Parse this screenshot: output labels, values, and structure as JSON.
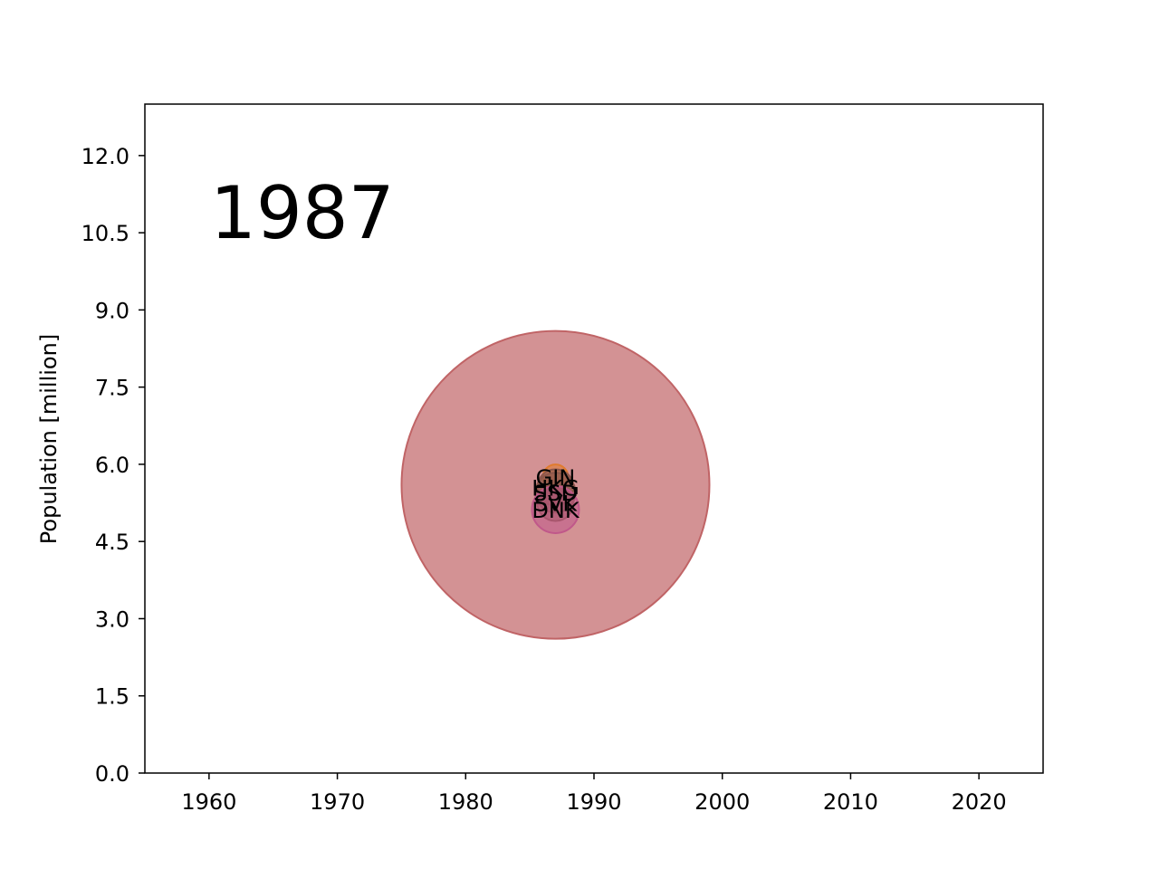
{
  "chart_data": {
    "type": "scatter",
    "title": "",
    "xlabel": "",
    "ylabel": "Population [million]",
    "xlim": [
      1955,
      2025
    ],
    "ylim": [
      0,
      13
    ],
    "xticks": [
      1960,
      1970,
      1980,
      1990,
      2000,
      2010,
      2020
    ],
    "yticks": [
      0,
      1.5,
      3,
      4.5,
      6,
      7.5,
      9,
      10.5,
      12
    ],
    "ytick_labels": [
      "0.0",
      "1.5",
      "3.0",
      "4.5",
      "6.0",
      "7.5",
      "9.0",
      "10.5",
      "12.0"
    ],
    "annotation": "1987",
    "grid": false,
    "points": [
      {
        "label": "",
        "x": 1987,
        "y": 5.6,
        "color": "#c06466"
      },
      {
        "label": "GIN",
        "x": 1987,
        "y": 5.75,
        "color": "#e07b2e"
      },
      {
        "label": "HKG",
        "x": 1987,
        "y": 5.55,
        "color": "#8c564b"
      },
      {
        "label": "SSD",
        "x": 1987,
        "y": 5.45,
        "color": "#8c564b"
      },
      {
        "label": "SVK",
        "x": 1987,
        "y": 5.25,
        "color": "#8c564b"
      },
      {
        "label": "DNK",
        "x": 1987,
        "y": 5.12,
        "color": "#c0588a"
      }
    ]
  }
}
